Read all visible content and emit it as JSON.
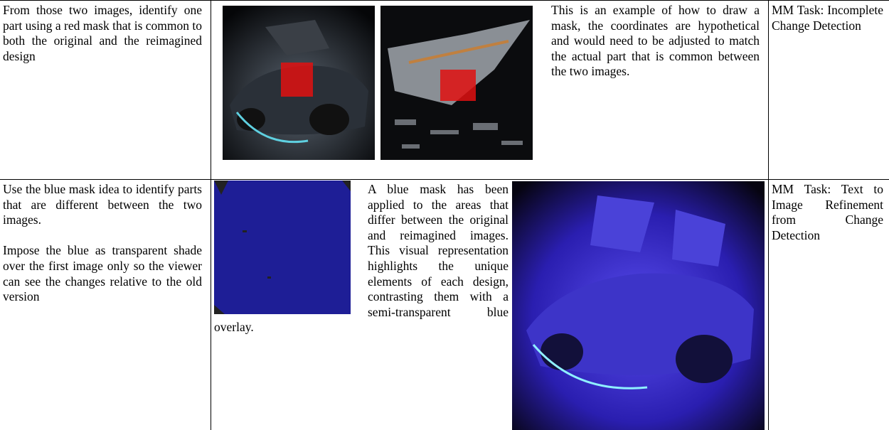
{
  "table": {
    "rows": [
      {
        "instruction": [
          "From those two images, identify one part using a red mask that is common to both the original and the reimagined design"
        ],
        "description": "This is an example of how to draw a mask, the coordinates are hypothetical and would need to be adjusted to match the actual part that is common between the two images.",
        "task": "MM Task: Incomplete Change Detection"
      },
      {
        "instruction": [
          "Use the blue mask idea to identify parts that are different between the two images.",
          "Impose the blue as transparent shade over the first image only so the viewer can see the changes relative to the old version"
        ],
        "description": "A blue mask has been applied to the areas that differ between the original and reimagined images. This visual representation highlights the unique elements of each design, contrasting them with a semi-transparent blue overlay.",
        "task": "MM Task: Text to Image Refinement from Change Detection"
      }
    ]
  }
}
